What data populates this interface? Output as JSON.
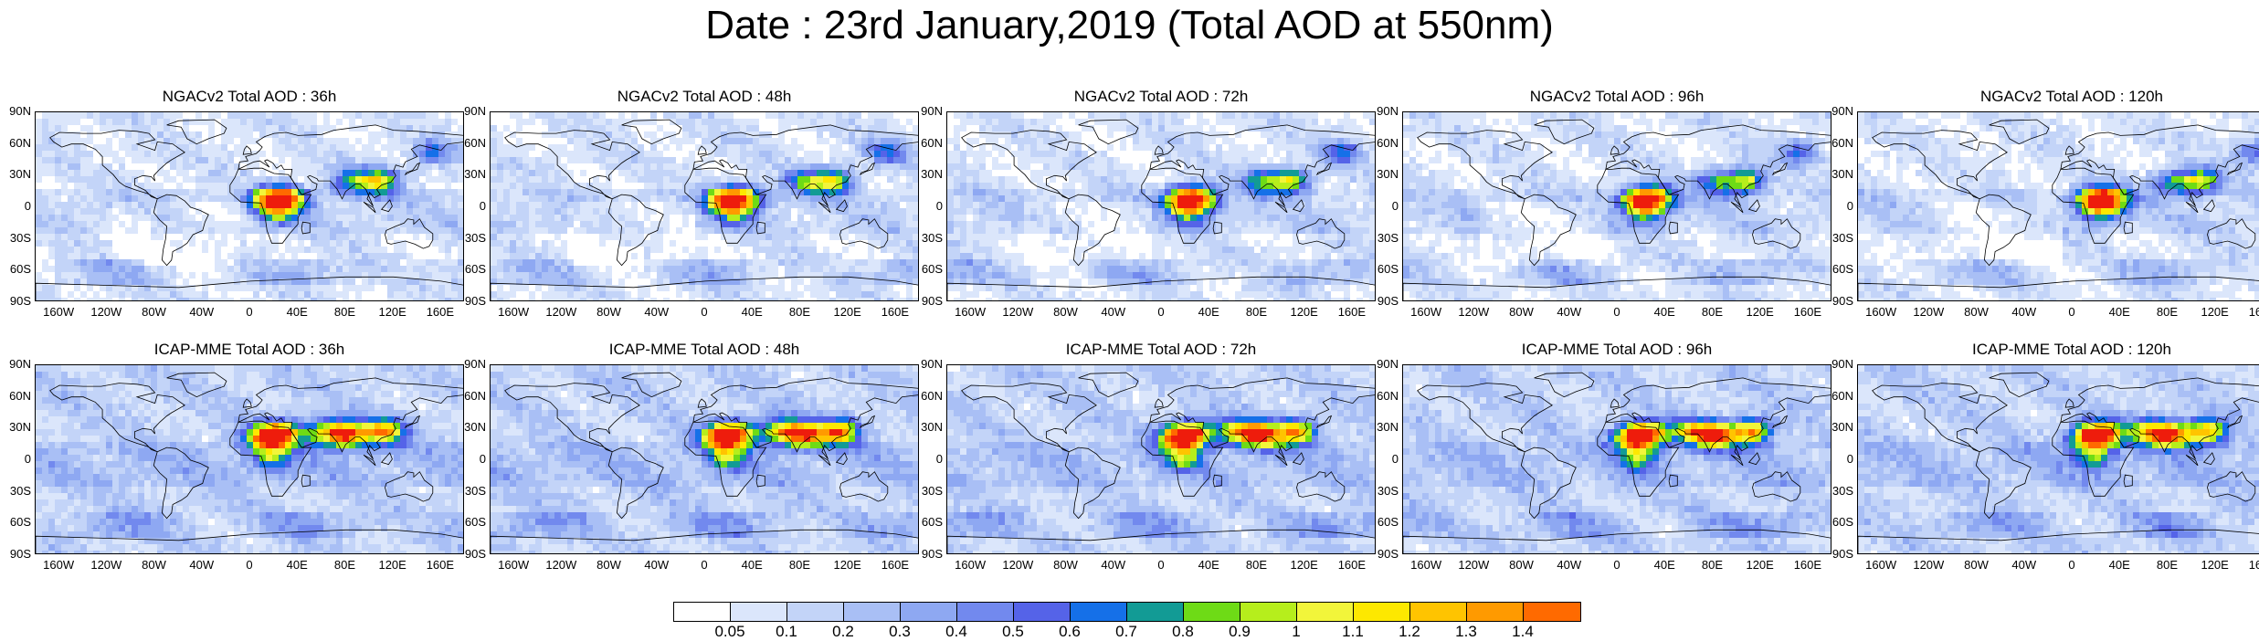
{
  "title": "Date : 23rd January,2019 (Total AOD at 550nm)",
  "panels": [
    {
      "title": "NGACv2 Total AOD : 36h"
    },
    {
      "title": "NGACv2 Total AOD : 48h"
    },
    {
      "title": "NGACv2 Total AOD : 72h"
    },
    {
      "title": "NGACv2 Total AOD : 96h"
    },
    {
      "title": "NGACv2 Total AOD : 120h"
    },
    {
      "title": "ICAP-MME Total AOD : 36h"
    },
    {
      "title": "ICAP-MME Total AOD : 48h"
    },
    {
      "title": "ICAP-MME Total AOD : 72h"
    },
    {
      "title": "ICAP-MME Total AOD : 96h"
    },
    {
      "title": "ICAP-MME Total AOD : 120h"
    }
  ],
  "lat_ticks": [
    "90N",
    "60N",
    "30N",
    "0",
    "30S",
    "60S",
    "90S"
  ],
  "lon_ticks": [
    "160W",
    "120W",
    "80W",
    "40W",
    "0",
    "40E",
    "80E",
    "120E",
    "160E"
  ],
  "colorbar": {
    "labels": [
      "0.05",
      "0.1",
      "0.2",
      "0.3",
      "0.4",
      "0.5",
      "0.6",
      "0.7",
      "0.8",
      "0.9",
      "1",
      "1.1",
      "1.2",
      "1.3",
      "1.4"
    ],
    "colors": [
      "#ffffff",
      "#dbe6fb",
      "#c3d4f8",
      "#a9bff5",
      "#8ea8f2",
      "#7289ee",
      "#5563e8",
      "#1570e8",
      "#129b95",
      "#6edb16",
      "#b6ee1c",
      "#f2f53a",
      "#fde800",
      "#ffc400",
      "#ff9a00",
      "#ff6a00",
      "#ee1c0c"
    ]
  }
}
